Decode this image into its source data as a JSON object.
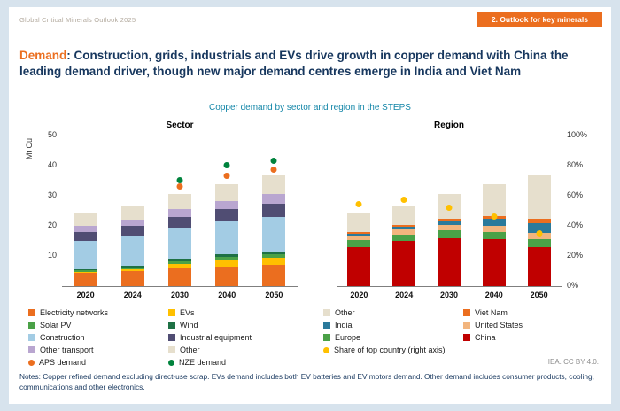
{
  "header": {
    "doc_title": "Global Critical Minerals Outlook 2025",
    "badge": "2. Outlook for key minerals"
  },
  "title": {
    "lead": "Demand",
    "rest": ": Construction, grids, industrials and EVs drive growth in copper demand with China the leading demand driver, though new major demand centres emerge in India and Viet Nam"
  },
  "subtitle": "Copper demand by sector and region in the STEPS",
  "footer": {
    "credit": "IEA. CC BY 4.0.",
    "notes": "Notes: Copper refined demand excluding direct-use scrap. EVs demand includes both EV batteries and EV motors demand. Other demand includes consumer products, cooling, communications and other electronics."
  },
  "chart_data": [
    {
      "type": "bar",
      "title": "Sector",
      "ylabel": "Mt Cu",
      "stacked": true,
      "categories": [
        "2020",
        "2024",
        "2030",
        "2040",
        "2050"
      ],
      "left_axis": {
        "max": 50,
        "ticks": [
          10,
          20,
          30,
          40,
          50
        ]
      },
      "series": [
        {
          "name": "Electricity networks",
          "color": "#eb6e1f",
          "values": [
            4.5,
            5.0,
            6.0,
            6.5,
            7.0
          ]
        },
        {
          "name": "EVs",
          "color": "#ffc000",
          "values": [
            0.3,
            0.6,
            1.3,
            1.9,
            2.3
          ]
        },
        {
          "name": "Solar PV",
          "color": "#4aa147",
          "values": [
            0.4,
            0.7,
            1.0,
            1.2,
            1.3
          ]
        },
        {
          "name": "Wind",
          "color": "#1e7145",
          "values": [
            0.3,
            0.4,
            0.7,
            0.9,
            1.0
          ]
        },
        {
          "name": "Construction",
          "color": "#a3cce4",
          "values": [
            9.5,
            10.0,
            10.5,
            11.0,
            11.5
          ]
        },
        {
          "name": "Industrial equipment",
          "color": "#504d73",
          "values": [
            3.0,
            3.3,
            3.6,
            4.0,
            4.4
          ]
        },
        {
          "name": "Other transport",
          "color": "#b9a6d0",
          "values": [
            2.0,
            2.1,
            2.4,
            2.8,
            3.1
          ]
        },
        {
          "name": "Other",
          "color": "#e6dfcd",
          "values": [
            4.0,
            4.4,
            5.0,
            5.6,
            6.1
          ]
        }
      ],
      "markers": [
        {
          "name": "APS demand",
          "color": "#eb6e1f",
          "axis": "left",
          "values": [
            null,
            null,
            33,
            36.5,
            38.5
          ]
        },
        {
          "name": "NZE demand",
          "color": "#00833d",
          "axis": "left",
          "values": [
            null,
            null,
            35,
            40,
            41.5
          ]
        }
      ],
      "legend": {
        "items": [
          {
            "label": "Electricity networks",
            "color": "#eb6e1f",
            "shape": "square"
          },
          {
            "label": "EVs",
            "color": "#ffc000",
            "shape": "square"
          },
          {
            "label": "Solar PV",
            "color": "#4aa147",
            "shape": "square"
          },
          {
            "label": "Wind",
            "color": "#1e7145",
            "shape": "square"
          },
          {
            "label": "Construction",
            "color": "#a3cce4",
            "shape": "square"
          },
          {
            "label": "Industrial equipment",
            "color": "#504d73",
            "shape": "square"
          },
          {
            "label": "Other transport",
            "color": "#b9a6d0",
            "shape": "square"
          },
          {
            "label": "Other",
            "color": "#e6dfcd",
            "shape": "square"
          },
          {
            "label": "APS demand",
            "color": "#eb6e1f",
            "shape": "circle"
          },
          {
            "label": "NZE demand",
            "color": "#00833d",
            "shape": "circle"
          }
        ]
      }
    },
    {
      "type": "bar",
      "title": "Region",
      "stacked": true,
      "categories": [
        "2020",
        "2024",
        "2030",
        "2040",
        "2050"
      ],
      "bar_axis_max": 50,
      "right_axis": {
        "max": 100,
        "ticks": [
          0,
          20,
          40,
          60,
          80,
          100
        ],
        "suffix": "%"
      },
      "series": [
        {
          "name": "China",
          "color": "#c00000",
          "values": [
            13.0,
            15.0,
            16.0,
            15.5,
            13.0
          ]
        },
        {
          "name": "Europe",
          "color": "#4aa147",
          "values": [
            2.2,
            2.2,
            2.4,
            2.5,
            2.5
          ]
        },
        {
          "name": "United States",
          "color": "#f2b57e",
          "values": [
            1.6,
            1.7,
            1.9,
            2.1,
            2.2
          ]
        },
        {
          "name": "India",
          "color": "#2b7a9b",
          "values": [
            0.7,
            0.9,
            1.3,
            2.2,
            3.2
          ]
        },
        {
          "name": "Viet Nam",
          "color": "#eb6e1f",
          "values": [
            0.4,
            0.5,
            0.7,
            1.1,
            1.5
          ]
        },
        {
          "name": "Other",
          "color": "#e6dfcd",
          "values": [
            6.1,
            6.2,
            8.2,
            10.5,
            14.3
          ]
        }
      ],
      "markers": [
        {
          "name": "Share of top country (right axis)",
          "color": "#ffc000",
          "axis": "right",
          "values": [
            54,
            57,
            52,
            46,
            35
          ]
        }
      ],
      "legend": {
        "items": [
          {
            "label": "Other",
            "color": "#e6dfcd",
            "shape": "square"
          },
          {
            "label": "Viet Nam",
            "color": "#eb6e1f",
            "shape": "square"
          },
          {
            "label": "India",
            "color": "#2b7a9b",
            "shape": "square"
          },
          {
            "label": "United States",
            "color": "#f2b57e",
            "shape": "square"
          },
          {
            "label": "Europe",
            "color": "#4aa147",
            "shape": "square"
          },
          {
            "label": "China",
            "color": "#c00000",
            "shape": "square"
          },
          {
            "label": "Share of top country (right axis)",
            "color": "#ffc000",
            "shape": "circle"
          }
        ]
      }
    }
  ]
}
